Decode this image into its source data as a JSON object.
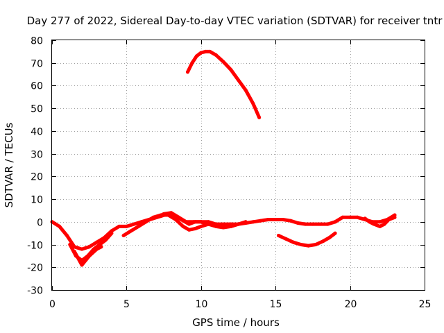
{
  "chart_data": {
    "type": "line",
    "title": "Day 277 of 2022, Sidereal Day-to-day VTEC variation (SDTVAR) for receiver tntr",
    "xlabel": "GPS time / hours",
    "ylabel": "SDTVAR / TECUs",
    "xlim": [
      0,
      25
    ],
    "ylim": [
      -30,
      80
    ],
    "xticks": [
      0,
      5,
      10,
      15,
      20,
      25
    ],
    "yticks": [
      -30,
      -20,
      -10,
      0,
      10,
      20,
      30,
      40,
      50,
      60,
      70,
      80
    ],
    "grid": true,
    "color": "#ff0000",
    "series": [
      {
        "name": "arc-main",
        "points": [
          [
            0,
            0
          ],
          [
            0.5,
            -2
          ],
          [
            1,
            -6
          ],
          [
            1.5,
            -11
          ],
          [
            2,
            -12
          ],
          [
            2.5,
            -11
          ],
          [
            3,
            -9
          ],
          [
            3.5,
            -7
          ],
          [
            4,
            -4
          ],
          [
            4.5,
            -2
          ],
          [
            5,
            -2
          ],
          [
            5.5,
            -1
          ],
          [
            6,
            0
          ],
          [
            6.5,
            1
          ],
          [
            7,
            2
          ],
          [
            7.5,
            3.5
          ],
          [
            8,
            4
          ],
          [
            8.5,
            2
          ],
          [
            9,
            0
          ],
          [
            9.5,
            0
          ],
          [
            10,
            0
          ],
          [
            10.5,
            0
          ],
          [
            11,
            -1
          ],
          [
            11.5,
            -1
          ],
          [
            12,
            -1
          ],
          [
            12.5,
            -1
          ],
          [
            13,
            -0.5
          ],
          [
            13.5,
            0
          ],
          [
            14,
            0.5
          ],
          [
            14.5,
            1
          ],
          [
            15,
            1
          ],
          [
            15.5,
            1
          ],
          [
            16,
            0.5
          ],
          [
            16.5,
            -0.5
          ],
          [
            17,
            -1
          ],
          [
            17.5,
            -1
          ],
          [
            18,
            -1
          ],
          [
            18.5,
            -1
          ],
          [
            19,
            0
          ],
          [
            19.5,
            2
          ],
          [
            20,
            2
          ],
          [
            20.5,
            2
          ],
          [
            21,
            1
          ],
          [
            21.5,
            0
          ],
          [
            22,
            0
          ],
          [
            22.5,
            1
          ],
          [
            23,
            3
          ]
        ]
      },
      {
        "name": "arc-low-1",
        "points": [
          [
            1.2,
            -10
          ],
          [
            1.6,
            -15
          ],
          [
            2,
            -17
          ],
          [
            2.4,
            -15
          ],
          [
            2.8,
            -12
          ],
          [
            3.2,
            -10
          ],
          [
            3.6,
            -8
          ],
          [
            4,
            -5
          ]
        ]
      },
      {
        "name": "arc-low-2",
        "points": [
          [
            1.5,
            -13
          ],
          [
            2,
            -19
          ],
          [
            2.5,
            -15
          ],
          [
            3,
            -12
          ],
          [
            3.3,
            -11
          ]
        ]
      },
      {
        "name": "arc-mid-1",
        "points": [
          [
            4.8,
            -6
          ],
          [
            5.3,
            -4
          ],
          [
            5.8,
            -2
          ],
          [
            6.3,
            0
          ],
          [
            6.8,
            2
          ],
          [
            7.3,
            3
          ],
          [
            7.8,
            3
          ],
          [
            8.3,
            1
          ],
          [
            8.8,
            -2
          ],
          [
            9.2,
            -3.5
          ],
          [
            9.6,
            -3
          ],
          [
            10,
            -2
          ],
          [
            10.5,
            -1
          ],
          [
            11,
            -1
          ],
          [
            11.5,
            -2
          ],
          [
            12,
            -2
          ],
          [
            12.5,
            -1
          ],
          [
            13,
            0
          ]
        ]
      },
      {
        "name": "arc-mid-2",
        "points": [
          [
            6.3,
            0.5
          ],
          [
            6.8,
            1.5
          ],
          [
            7.3,
            2.5
          ],
          [
            7.8,
            3.5
          ],
          [
            8.3,
            2.5
          ],
          [
            8.8,
            0.5
          ],
          [
            9.2,
            -1
          ],
          [
            9.6,
            0
          ],
          [
            10,
            0
          ],
          [
            10.5,
            -1
          ],
          [
            11,
            -2
          ],
          [
            11.5,
            -2.5
          ],
          [
            12,
            -2
          ],
          [
            12.5,
            -1
          ]
        ]
      },
      {
        "name": "arc-high",
        "points": [
          [
            9.1,
            66
          ],
          [
            9.4,
            70
          ],
          [
            9.7,
            73
          ],
          [
            10,
            74.5
          ],
          [
            10.3,
            75
          ],
          [
            10.6,
            75
          ],
          [
            11,
            73.5
          ],
          [
            11.5,
            70.5
          ],
          [
            12,
            67
          ],
          [
            12.5,
            62.5
          ],
          [
            13,
            58
          ],
          [
            13.5,
            52
          ],
          [
            13.9,
            46
          ]
        ]
      },
      {
        "name": "arc-dip",
        "points": [
          [
            15.2,
            -6
          ],
          [
            15.7,
            -7.5
          ],
          [
            16.2,
            -9
          ],
          [
            16.7,
            -10
          ],
          [
            17.2,
            -10.5
          ],
          [
            17.7,
            -10
          ],
          [
            18.2,
            -8.5
          ],
          [
            18.6,
            -7
          ],
          [
            19,
            -5
          ]
        ]
      },
      {
        "name": "arc-end",
        "points": [
          [
            21,
            1.5
          ],
          [
            21.3,
            0
          ],
          [
            21.6,
            -1
          ],
          [
            22,
            -2
          ],
          [
            22.3,
            -1
          ],
          [
            22.6,
            1
          ],
          [
            23,
            2
          ]
        ]
      }
    ]
  }
}
